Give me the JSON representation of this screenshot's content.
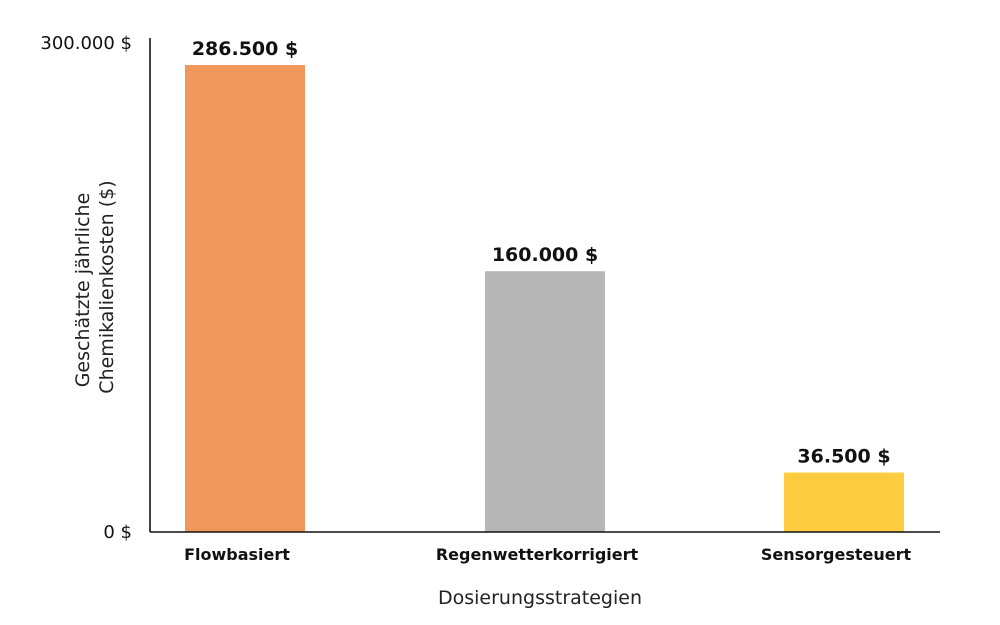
{
  "chart_data": {
    "type": "bar",
    "categories": [
      "Flowbasiert",
      "Regenwetterkorrigiert",
      "Sensorgesteuert"
    ],
    "values": [
      286500,
      160000,
      36500
    ],
    "value_labels": [
      "286.500 $",
      "160.000 $",
      "36.500 $"
    ],
    "colors": [
      "#f0975b",
      "#b7b7b7",
      "#fecd3f"
    ],
    "title": "",
    "xlabel": "Dosierungsstrategien",
    "ylabel_lines": [
      "Geschätzte jährliche",
      "Chemikalienkosten ($)"
    ],
    "ylim": [
      0,
      300000
    ],
    "yticks": [
      0,
      300000
    ],
    "ytick_labels": [
      "0 $",
      "300.000 $"
    ],
    "grid": false,
    "legend": "none"
  }
}
